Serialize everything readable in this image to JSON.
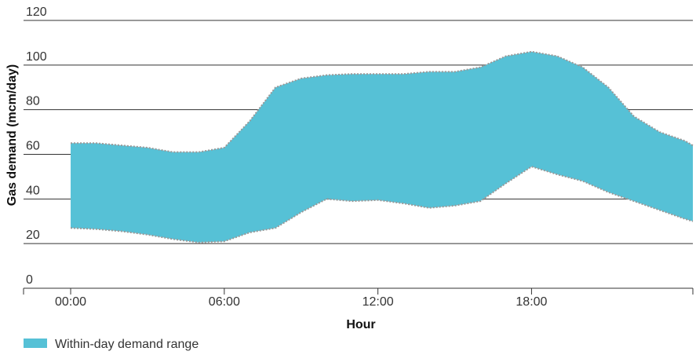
{
  "chart_data": {
    "type": "range-area",
    "x": [
      0,
      1,
      2,
      3,
      4,
      5,
      6,
      7,
      8,
      9,
      10,
      11,
      12,
      13,
      14,
      15,
      16,
      17,
      18,
      19,
      20,
      21,
      22,
      23,
      24,
      24.3
    ],
    "series": [
      {
        "name": "Within-day demand range",
        "color": "#56c1d6",
        "high": [
          65,
          65,
          64,
          63,
          61,
          61,
          63,
          75,
          90,
          94,
          95.5,
          96,
          96,
          96,
          97,
          97,
          99,
          104,
          106,
          104,
          99,
          90,
          77,
          70,
          66,
          64
        ],
        "low": [
          27,
          26.5,
          25.5,
          24,
          22,
          20.5,
          21,
          25,
          27,
          34,
          40,
          39,
          39.5,
          38,
          36,
          37,
          39,
          47,
          54.5,
          51,
          48,
          43,
          39,
          35,
          31,
          30
        ]
      }
    ],
    "xlim": [
      -1.84,
      24.3
    ],
    "xticks": [
      {
        "value": 0,
        "label": "00:00"
      },
      {
        "value": 6,
        "label": "06:00"
      },
      {
        "value": 12,
        "label": "12:00"
      },
      {
        "value": 18,
        "label": "18:00"
      }
    ],
    "ylim": [
      0,
      120
    ],
    "yticks": [
      0,
      20,
      40,
      60,
      80,
      100,
      120
    ],
    "xlabel": "Hour",
    "ylabel": "Gas demand (mcm/day)",
    "grid": true,
    "legend": "bottom-left"
  }
}
